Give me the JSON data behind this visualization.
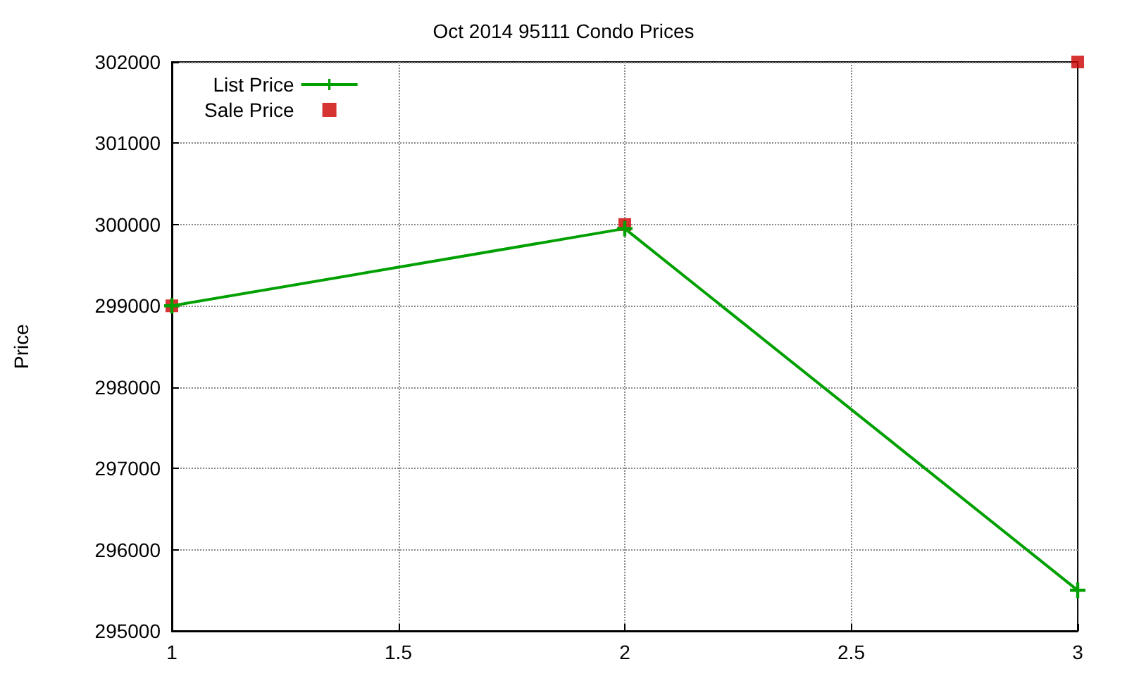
{
  "chart_data": {
    "type": "line",
    "title": "Oct 2014 95111 Condo Prices",
    "ylabel": "Price",
    "x": [
      1,
      2,
      3
    ],
    "series": [
      {
        "name": "List Price",
        "type": "line",
        "color": "#00a000",
        "marker": "cross",
        "values": [
          299000,
          299950,
          295500
        ]
      },
      {
        "name": "Sale Price",
        "type": "scatter",
        "color": "#cc0000",
        "marker": "square",
        "values": [
          299000,
          300000,
          302000
        ]
      }
    ],
    "xlim": [
      1,
      3
    ],
    "xticks": [
      1,
      1.5,
      2,
      2.5,
      3
    ],
    "ylim": [
      295000,
      302000
    ],
    "yticks": [
      295000,
      296000,
      297000,
      298000,
      299000,
      300000,
      301000,
      302000
    ],
    "grid": true,
    "legend": "top left",
    "line_style": "solid"
  }
}
